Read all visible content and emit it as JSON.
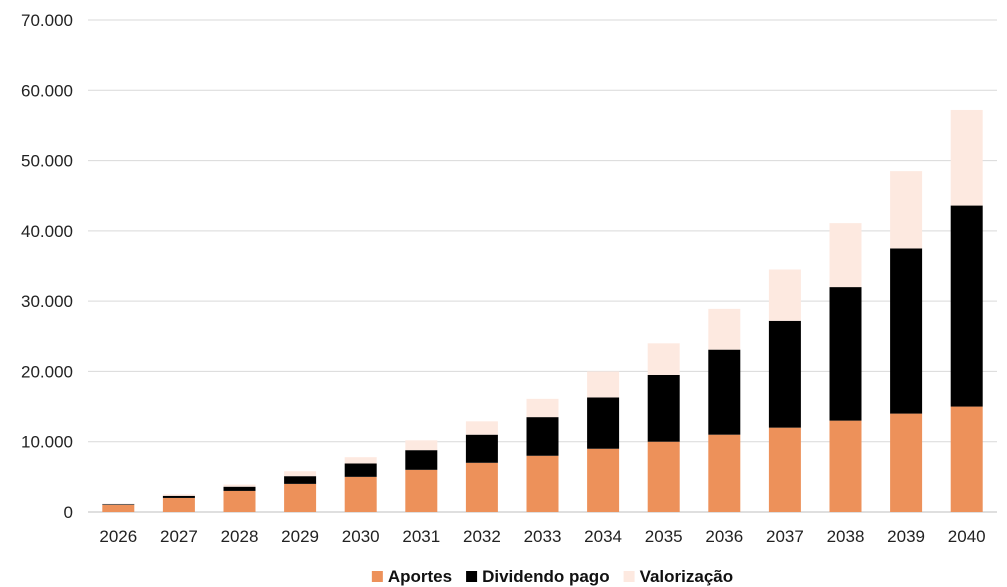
{
  "chart_data": {
    "type": "bar",
    "stacked": true,
    "title": "",
    "xlabel": "",
    "ylabel": "",
    "ylim": [
      0,
      70000
    ],
    "yticks": [
      0,
      10000,
      20000,
      30000,
      40000,
      50000,
      60000,
      70000
    ],
    "ytick_labels": [
      "0",
      "10.000",
      "20.000",
      "30.000",
      "40.000",
      "50.000",
      "60.000",
      "70.000"
    ],
    "grid": true,
    "legend_position": "bottom",
    "categories": [
      "2026",
      "2027",
      "2028",
      "2029",
      "2030",
      "2031",
      "2032",
      "2033",
      "2034",
      "2035",
      "2036",
      "2037",
      "2038",
      "2039",
      "2040"
    ],
    "series": [
      {
        "name": "Aportes",
        "color": "#ED915A",
        "values": [
          1000,
          2000,
          3000,
          4000,
          5000,
          6000,
          7000,
          8000,
          9000,
          10000,
          11000,
          12000,
          13000,
          14000,
          15000
        ]
      },
      {
        "name": "Dividendo pago",
        "color": "#000000",
        "values": [
          100,
          300,
          600,
          1100,
          1900,
          2800,
          4000,
          5500,
          7300,
          9500,
          12100,
          15200,
          19000,
          23500,
          28600
        ]
      },
      {
        "name": "Valorização",
        "color": "#FDE9E0",
        "values": [
          100,
          200,
          300,
          700,
          900,
          1400,
          1900,
          2600,
          3700,
          4500,
          5800,
          7300,
          9100,
          11000,
          13600
        ]
      }
    ]
  }
}
